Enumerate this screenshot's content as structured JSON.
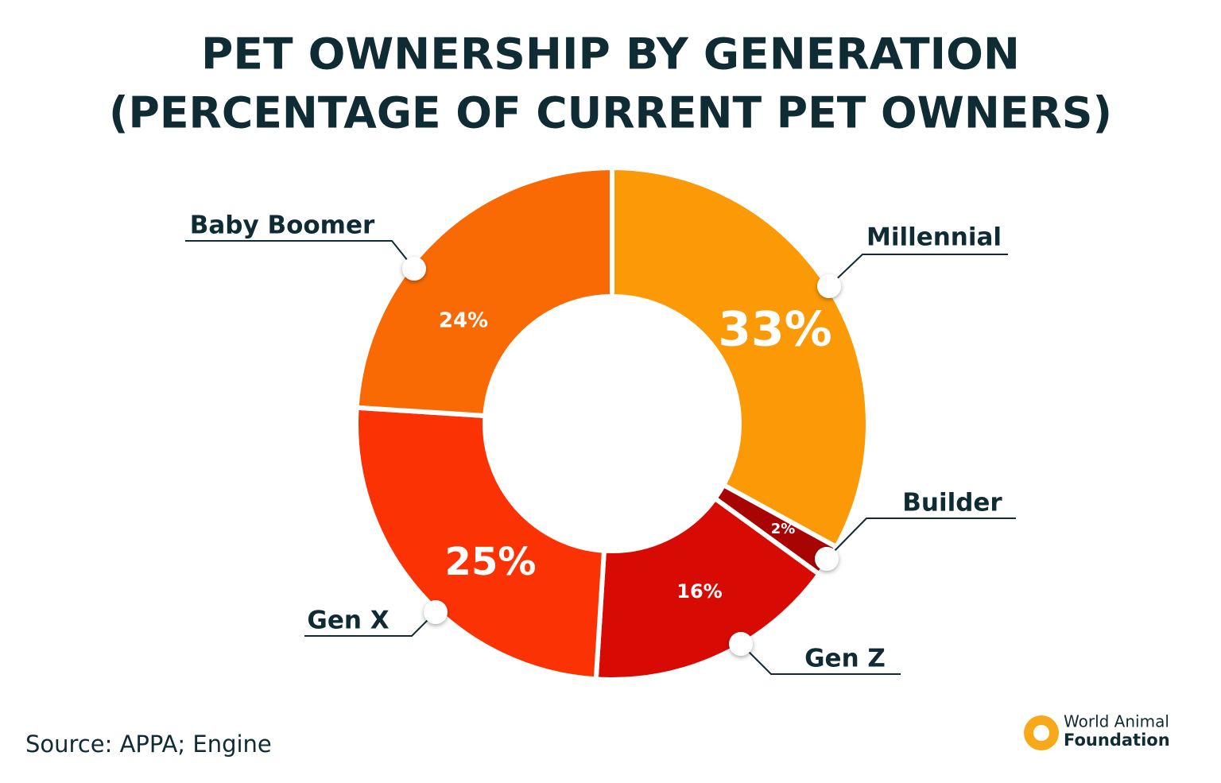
{
  "chart_data": {
    "type": "donut",
    "title": [
      "PET OWNERSHIP BY GENERATION",
      "(PERCENTAGE OF CURRENT PET OWNERS)"
    ],
    "categories": [
      "Millennial",
      "Builder",
      "Gen Z",
      "Gen X",
      "Baby Boomer"
    ],
    "values": [
      33,
      2,
      16,
      25,
      24
    ],
    "value_labels": [
      "33%",
      "2%",
      "16%",
      "25%",
      "24%"
    ],
    "colors": [
      "#fb9a06",
      "#a80404",
      "#d80a04",
      "#fb3204",
      "#fa6a04"
    ],
    "source": "Source: APPA; Engine",
    "logo": [
      "World Animal",
      "Foundation"
    ]
  }
}
